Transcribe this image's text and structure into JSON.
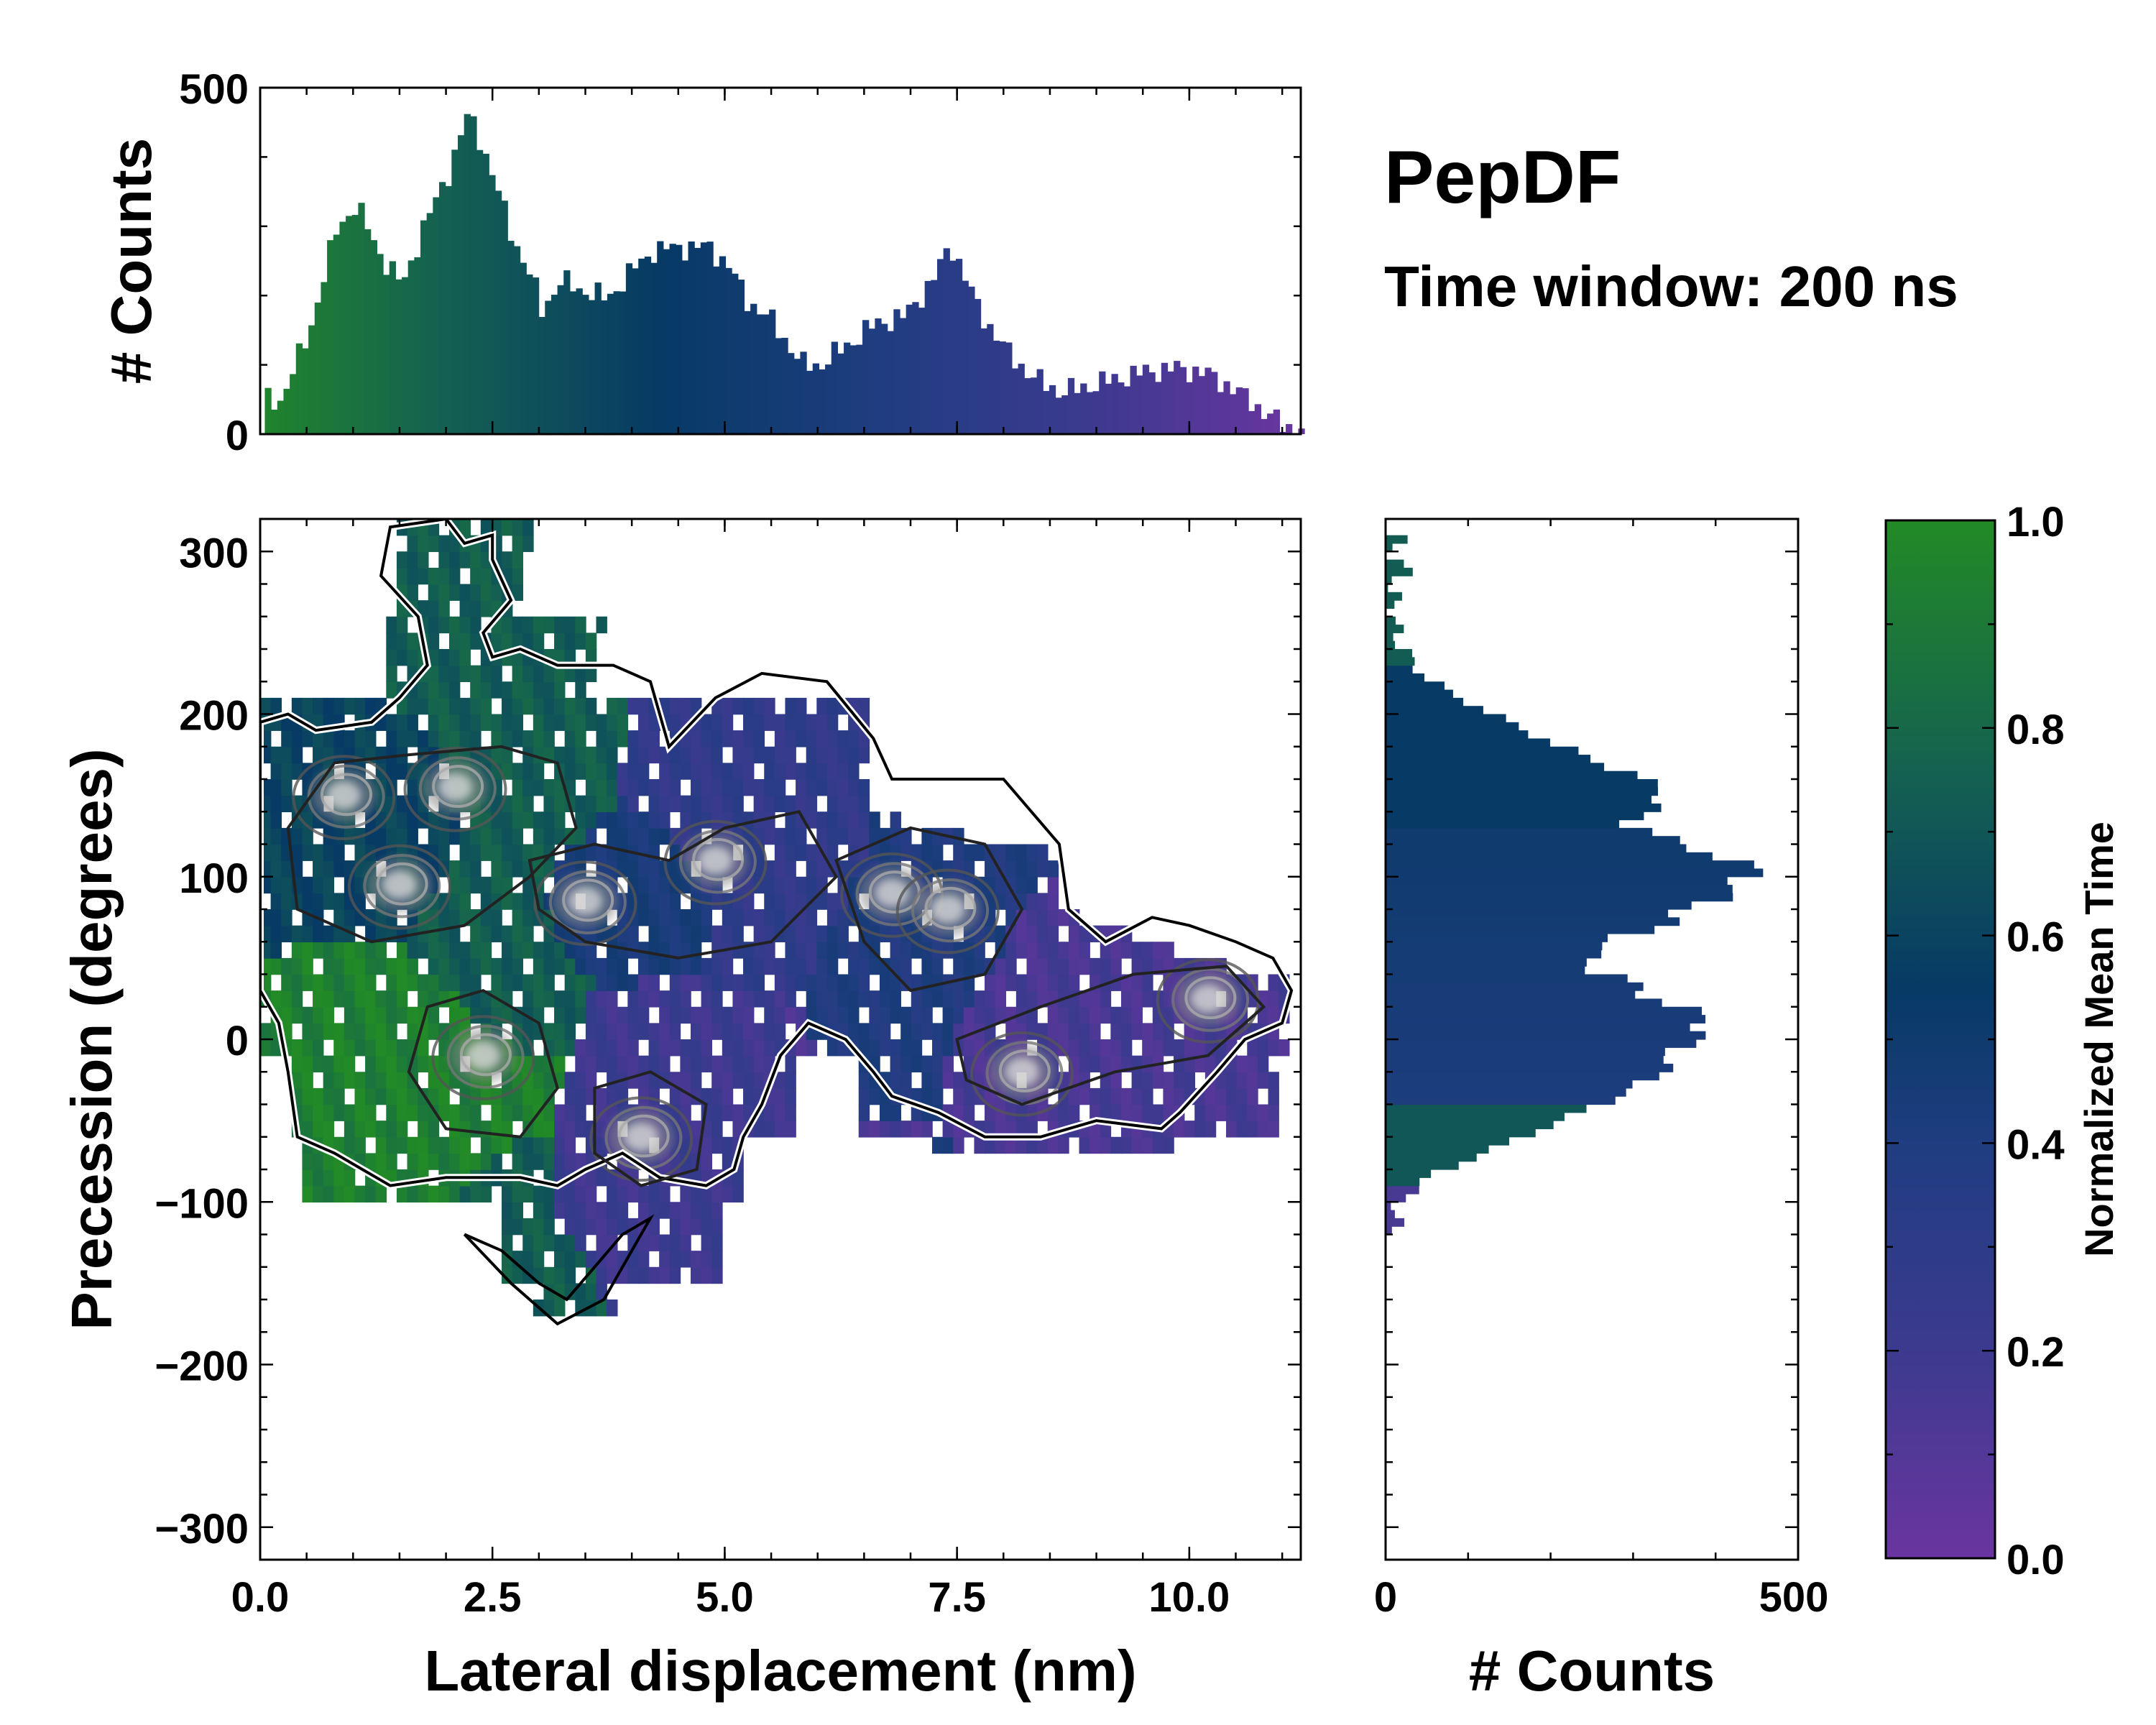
{
  "title": "PepDF",
  "subtitle": "Time window: 200 ns",
  "chart_data": [
    {
      "type": "histogram",
      "panel": "top-marginal",
      "title": "",
      "xlabel": "",
      "ylabel": "# Counts",
      "xlim": [
        0,
        11.2
      ],
      "ylim": [
        0,
        500
      ],
      "yticks": [
        "0",
        "500"
      ],
      "bin_width": 0.067,
      "x": [
        0.2,
        0.5,
        0.8,
        1.0,
        1.3,
        1.5,
        1.7,
        2.0,
        2.2,
        2.3,
        2.5,
        2.7,
        2.9,
        3.0,
        3.2,
        3.5,
        3.7,
        4.0,
        4.2,
        4.5,
        4.8,
        5.0,
        5.2,
        5.5,
        5.8,
        6.0,
        6.3,
        6.6,
        6.9,
        7.2,
        7.4,
        7.7,
        8.0,
        8.3,
        8.6,
        8.9,
        9.2,
        9.5,
        9.8,
        10.1,
        10.4,
        10.7,
        11.0
      ],
      "values": [
        50,
        150,
        300,
        330,
        250,
        215,
        290,
        380,
        460,
        440,
        360,
        280,
        220,
        180,
        220,
        205,
        195,
        240,
        265,
        270,
        270,
        245,
        195,
        160,
        100,
        100,
        130,
        160,
        170,
        220,
        275,
        180,
        120,
        80,
        60,
        70,
        80,
        90,
        95,
        90,
        70,
        40,
        10
      ]
    },
    {
      "type": "heatmap",
      "panel": "main",
      "xlabel": "Lateral displacement (nm)",
      "ylabel": "Precession (degrees)",
      "xlim": [
        0,
        11.2
      ],
      "ylim": [
        -320,
        320
      ],
      "xticks": [
        "0.0",
        "2.5",
        "5.0",
        "7.5",
        "10.0"
      ],
      "yticks": [
        "−300",
        "−200",
        "−100",
        "0",
        "100",
        "200",
        "300"
      ],
      "color_metric": "Normalized Mean Time",
      "regions": [
        {
          "x": [
            1.5,
            3.5
          ],
          "y": [
            -90,
            320
          ],
          "time": 0.78
        },
        {
          "x": [
            0.0,
            3.0
          ],
          "y": [
            60,
            200
          ],
          "time": 0.65
        },
        {
          "x": [
            0.3,
            3.3
          ],
          "y": [
            -90,
            60
          ],
          "time": 0.95
        },
        {
          "x": [
            2.6,
            5.2
          ],
          "y": [
            40,
            130
          ],
          "time": 0.45
        },
        {
          "x": [
            3.2,
            5.6
          ],
          "y": [
            -110,
            30
          ],
          "time": 0.2
        },
        {
          "x": [
            4.3,
            6.6
          ],
          "y": [
            40,
            220
          ],
          "time": 0.28
        },
        {
          "x": [
            6.0,
            8.3
          ],
          "y": [
            -50,
            140
          ],
          "time": 0.4
        },
        {
          "x": [
            6.3,
            11.2
          ],
          "y": [
            -60,
            80
          ],
          "time": 0.15
        }
      ],
      "density_peaks": [
        {
          "x": 0.9,
          "y": 150
        },
        {
          "x": 2.1,
          "y": 155
        },
        {
          "x": 1.5,
          "y": 95
        },
        {
          "x": 3.5,
          "y": 85
        },
        {
          "x": 4.9,
          "y": 110
        },
        {
          "x": 2.4,
          "y": -10
        },
        {
          "x": 4.1,
          "y": -60
        },
        {
          "x": 6.8,
          "y": 90
        },
        {
          "x": 7.4,
          "y": 80
        },
        {
          "x": 8.2,
          "y": -20
        },
        {
          "x": 10.2,
          "y": 25
        }
      ]
    },
    {
      "type": "histogram",
      "panel": "right-marginal",
      "orientation": "horizontal",
      "xlabel": "# Counts",
      "ylabel": "",
      "xlim": [
        0,
        500
      ],
      "ylim": [
        -320,
        320
      ],
      "xticks": [
        "0",
        "500"
      ],
      "bin_width": 5,
      "y": [
        -115,
        -100,
        -85,
        -70,
        -55,
        -40,
        -25,
        -10,
        0,
        10,
        20,
        30,
        40,
        50,
        60,
        70,
        80,
        90,
        100,
        110,
        120,
        130,
        140,
        150,
        160,
        170,
        180,
        190,
        200,
        210,
        220,
        230,
        240,
        250,
        260,
        270,
        280,
        290,
        300,
        310
      ],
      "values": [
        10,
        20,
        60,
        130,
        200,
        270,
        330,
        350,
        380,
        390,
        340,
        300,
        260,
        240,
        290,
        340,
        380,
        420,
        450,
        410,
        340,
        300,
        320,
        340,
        300,
        250,
        200,
        160,
        120,
        80,
        50,
        30,
        20,
        10,
        10,
        5,
        20,
        15,
        8,
        5
      ]
    },
    {
      "type": "colorbar",
      "label": "Normalized Mean Time",
      "range": [
        0,
        1
      ],
      "ticks": [
        "0.0",
        "0.2",
        "0.4",
        "0.6",
        "0.8",
        "1.0"
      ],
      "colors": [
        "#6a35a0",
        "#3c3a8f",
        "#1f3d80",
        "#073a65",
        "#146052",
        "#228a26"
      ]
    }
  ]
}
